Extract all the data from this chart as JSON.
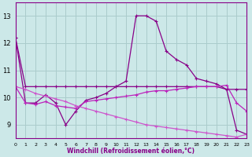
{
  "x": [
    0,
    1,
    2,
    3,
    4,
    5,
    6,
    7,
    8,
    9,
    10,
    11,
    12,
    13,
    14,
    15,
    16,
    17,
    18,
    19,
    20,
    21,
    22,
    23
  ],
  "line1": [
    12.2,
    10.4,
    10.4,
    10.4,
    10.4,
    10.4,
    10.4,
    10.4,
    10.4,
    10.4,
    10.4,
    10.4,
    10.4,
    10.4,
    10.4,
    10.4,
    10.4,
    10.4,
    10.4,
    10.4,
    10.4,
    10.3,
    10.3,
    10.3
  ],
  "line2": [
    12.2,
    9.8,
    9.8,
    10.1,
    9.8,
    9.0,
    9.5,
    9.9,
    10.0,
    10.15,
    10.4,
    10.6,
    13.0,
    13.0,
    12.8,
    11.7,
    11.4,
    11.2,
    10.7,
    10.6,
    10.5,
    10.3,
    8.8,
    8.65
  ],
  "line3": [
    10.4,
    9.8,
    9.75,
    9.85,
    9.7,
    9.65,
    9.6,
    9.85,
    9.9,
    9.95,
    10.0,
    10.05,
    10.1,
    10.2,
    10.25,
    10.25,
    10.3,
    10.35,
    10.4,
    10.4,
    10.4,
    10.45,
    9.8,
    9.5
  ],
  "line4": [
    10.4,
    10.3,
    10.15,
    10.05,
    9.95,
    9.85,
    9.7,
    9.6,
    9.5,
    9.4,
    9.3,
    9.2,
    9.1,
    9.0,
    8.95,
    8.9,
    8.85,
    8.8,
    8.75,
    8.7,
    8.65,
    8.6,
    8.55,
    8.65
  ],
  "color_dark": "#880088",
  "color_mid": "#bb22bb",
  "color_light": "#cc55cc",
  "bg_color": "#cce8e8",
  "grid_color": "#aacccc",
  "xlabel": "Windchill (Refroidissement éolien,°C)",
  "ylabel_ticks": [
    9,
    10,
    11,
    12,
    13
  ],
  "xticks": [
    0,
    1,
    2,
    3,
    4,
    5,
    6,
    7,
    8,
    9,
    10,
    11,
    12,
    13,
    14,
    15,
    16,
    17,
    18,
    19,
    20,
    21,
    22,
    23
  ],
  "xlim": [
    0,
    23
  ],
  "ylim": [
    8.5,
    13.5
  ]
}
